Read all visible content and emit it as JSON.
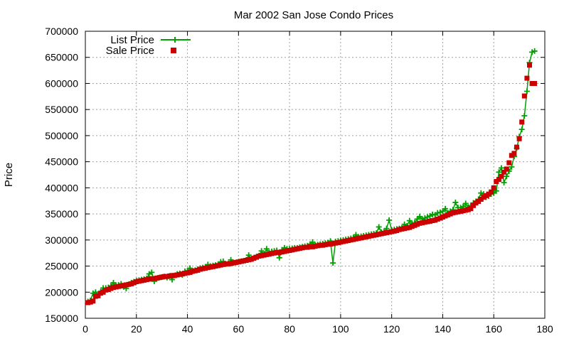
{
  "chart_data": {
    "type": "line",
    "title": "Mar 2002 San Jose Condo Prices",
    "xlabel": "",
    "ylabel": "Price",
    "xlim": [
      0,
      180
    ],
    "ylim": [
      150000,
      700000
    ],
    "xticks": [
      0,
      20,
      40,
      60,
      80,
      100,
      120,
      140,
      160,
      180
    ],
    "yticks": [
      150000,
      200000,
      250000,
      300000,
      350000,
      400000,
      450000,
      500000,
      550000,
      600000,
      650000,
      700000
    ],
    "xtick_labels": [
      "0",
      "20",
      "40",
      "60",
      "80",
      "100",
      "120",
      "140",
      "160",
      "180"
    ],
    "ytick_labels": [
      "150000",
      "200000",
      "250000",
      "300000",
      "350000",
      "400000",
      "450000",
      "500000",
      "550000",
      "600000",
      "650000",
      "700000"
    ],
    "grid": true,
    "legend_position": "top-left",
    "x": [
      1,
      2,
      3,
      4,
      5,
      6,
      7,
      8,
      9,
      10,
      11,
      12,
      13,
      14,
      15,
      16,
      17,
      18,
      19,
      20,
      21,
      22,
      23,
      24,
      25,
      26,
      27,
      28,
      29,
      30,
      31,
      32,
      33,
      34,
      35,
      36,
      37,
      38,
      39,
      40,
      41,
      42,
      43,
      44,
      45,
      46,
      47,
      48,
      49,
      50,
      51,
      52,
      53,
      54,
      55,
      56,
      57,
      58,
      59,
      60,
      61,
      62,
      63,
      64,
      65,
      66,
      67,
      68,
      69,
      70,
      71,
      72,
      73,
      74,
      75,
      76,
      77,
      78,
      79,
      80,
      81,
      82,
      83,
      84,
      85,
      86,
      87,
      88,
      89,
      90,
      91,
      92,
      93,
      94,
      95,
      96,
      97,
      98,
      99,
      100,
      101,
      102,
      103,
      104,
      105,
      106,
      107,
      108,
      109,
      110,
      111,
      112,
      113,
      114,
      115,
      116,
      117,
      118,
      119,
      120,
      121,
      122,
      123,
      124,
      125,
      126,
      127,
      128,
      129,
      130,
      131,
      132,
      133,
      134,
      135,
      136,
      137,
      138,
      139,
      140,
      141,
      142,
      143,
      144,
      145,
      146,
      147,
      148,
      149,
      150,
      151,
      152,
      153,
      154,
      155,
      156,
      157,
      158,
      159,
      160,
      161,
      162,
      163,
      164,
      165,
      166,
      167,
      168,
      169,
      170,
      171,
      172,
      173,
      174,
      175,
      176
    ],
    "series": [
      {
        "name": "List Price",
        "color": "#00a000",
        "values": [
          182000,
          184000,
          198000,
          200000,
          195000,
          201000,
          208000,
          208000,
          209000,
          212000,
          218000,
          213000,
          214000,
          216000,
          210000,
          207000,
          215000,
          218000,
          220000,
          222000,
          223000,
          224000,
          225000,
          226000,
          235000,
          238000,
          221000,
          226000,
          228000,
          229000,
          230000,
          228000,
          231000,
          224000,
          232000,
          235000,
          236000,
          233000,
          240000,
          241000,
          246000,
          240000,
          242000,
          244000,
          246000,
          247000,
          248000,
          253000,
          250000,
          251000,
          252000,
          253000,
          258000,
          259000,
          254000,
          255000,
          262000,
          256000,
          257000,
          258000,
          259000,
          260000,
          262000,
          271000,
          264000,
          266000,
          268000,
          270000,
          279000,
          273000,
          283000,
          276000,
          278000,
          279000,
          280000,
          266000,
          281000,
          285000,
          283000,
          283000,
          284000,
          285000,
          285000,
          286000,
          287000,
          288000,
          289000,
          292000,
          296000,
          290000,
          291000,
          292000,
          293000,
          294000,
          295000,
          298000,
          256000,
          297000,
          298000,
          299000,
          300000,
          301000,
          302000,
          303000,
          304000,
          310000,
          306000,
          307000,
          308000,
          309000,
          310000,
          311000,
          312000,
          313000,
          325000,
          315000,
          316000,
          322000,
          338000,
          319000,
          320000,
          321000,
          322000,
          323000,
          330000,
          327000,
          337000,
          331000,
          333000,
          340000,
          345000,
          340000,
          342000,
          344000,
          346000,
          349000,
          348000,
          352000,
          353000,
          355000,
          360000,
          352000,
          355000,
          358000,
          372000,
          362000,
          362000,
          364000,
          370000,
          363000,
          366000,
          371000,
          374000,
          378000,
          390000,
          388000,
          382000,
          384000,
          388000,
          390000,
          394000,
          430000,
          438000,
          410000,
          422000,
          432000,
          440000,
          460000,
          476000,
          498000,
          512000,
          538000,
          585000,
          640000,
          660000,
          662000
        ]
      },
      {
        "name": "Sale Price",
        "color": "#cc0000",
        "values": [
          180000,
          181000,
          183000,
          192000,
          193000,
          198000,
          200000,
          204000,
          205000,
          207000,
          209000,
          210000,
          211000,
          212000,
          213000,
          214000,
          215000,
          216000,
          218000,
          220000,
          221000,
          222000,
          223000,
          224000,
          225000,
          226000,
          226000,
          227000,
          228000,
          229000,
          230000,
          230000,
          231000,
          232000,
          232000,
          233000,
          234000,
          235000,
          236000,
          237000,
          238000,
          240000,
          241000,
          242000,
          244000,
          245000,
          246000,
          247000,
          248000,
          249000,
          250000,
          251000,
          252000,
          253000,
          254000,
          254000,
          255000,
          256000,
          257000,
          258000,
          259000,
          260000,
          261000,
          262000,
          263000,
          265000,
          267000,
          269000,
          270000,
          271000,
          272000,
          273000,
          274000,
          275000,
          276000,
          276000,
          277000,
          278000,
          279000,
          280000,
          281000,
          282000,
          283000,
          284000,
          285000,
          286000,
          286000,
          287000,
          287000,
          288000,
          289000,
          290000,
          290000,
          291000,
          292000,
          292000,
          293000,
          294000,
          295000,
          296000,
          297000,
          298000,
          299000,
          300000,
          301000,
          302000,
          303000,
          304000,
          305000,
          306000,
          307000,
          308000,
          309000,
          310000,
          311000,
          312000,
          313000,
          314000,
          315000,
          316000,
          317000,
          318000,
          320000,
          321000,
          322000,
          323000,
          324000,
          326000,
          328000,
          330000,
          332000,
          333000,
          334000,
          335000,
          336000,
          337000,
          338000,
          340000,
          342000,
          344000,
          346000,
          348000,
          350000,
          352000,
          353000,
          354000,
          355000,
          356000,
          357000,
          358000,
          360000,
          366000,
          371000,
          374000,
          378000,
          382000,
          385000,
          388000,
          392000,
          400000,
          412000,
          416000,
          422000,
          430000,
          436000,
          448000,
          462000,
          466000,
          478000,
          494000,
          526000,
          576000,
          610000,
          635000,
          600000,
          600000
        ]
      }
    ]
  }
}
